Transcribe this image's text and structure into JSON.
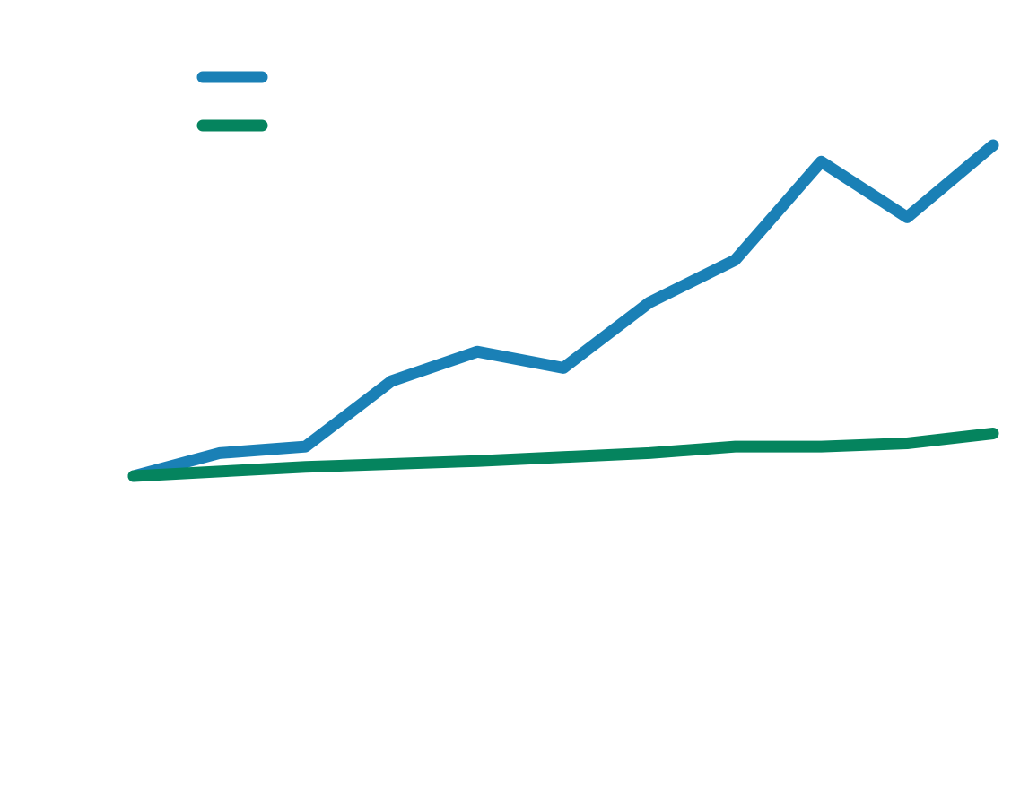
{
  "chart_data": {
    "type": "line",
    "title": "",
    "xlabel": "",
    "ylabel": "",
    "grid": false,
    "legend_position": "top-left",
    "x": [
      0,
      1,
      2,
      3,
      4,
      5,
      6,
      7,
      8,
      9,
      10
    ],
    "series": [
      {
        "color": "#1a80b6",
        "values": [
          0,
          7,
          9,
          29,
          38,
          33,
          53,
          66,
          96,
          79,
          101
        ]
      },
      {
        "color": "#05845e",
        "values": [
          0,
          1.4,
          2.8,
          3.7,
          4.6,
          5.8,
          7.0,
          9.0,
          9.0,
          10.0,
          13.0
        ]
      }
    ],
    "ylim": [
      -60,
      120
    ]
  },
  "legend": {
    "entries": [
      {
        "color": "#1a80b6"
      },
      {
        "color": "#05845e"
      }
    ]
  }
}
